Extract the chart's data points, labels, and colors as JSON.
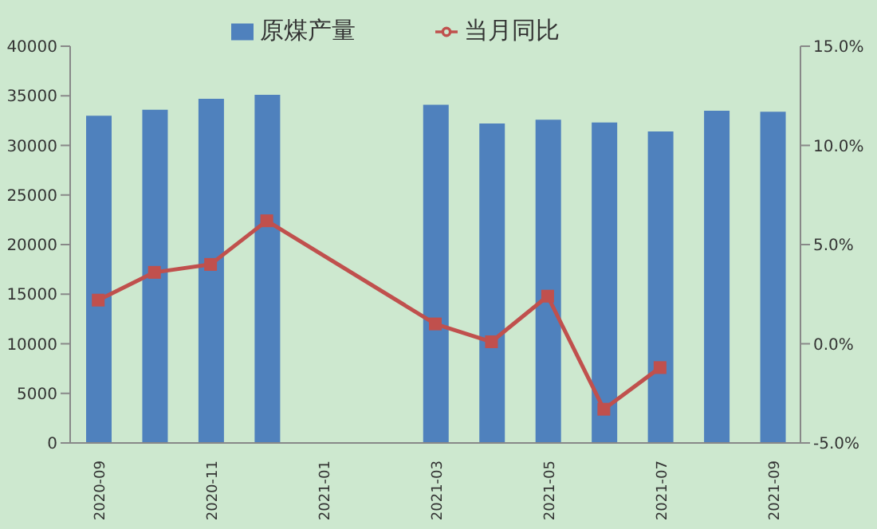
{
  "chart_data": {
    "type": "bar",
    "categories": [
      "2020-09",
      null,
      "2020-11",
      null,
      "2021-01",
      null,
      "2021-03",
      null,
      "2021-05",
      null,
      "2021-07",
      null,
      "2021-09"
    ],
    "series": [
      {
        "name": "原煤产量",
        "color": "#4f81bd",
        "values": [
          33000,
          33600,
          34700,
          35100,
          null,
          null,
          34100,
          32200,
          32600,
          32300,
          31400,
          33500,
          33400
        ]
      },
      {
        "name": "当月同比",
        "type": "line",
        "axis": "y2",
        "color": "#c0504d",
        "marker": "square",
        "values": [
          2.2,
          3.6,
          4.0,
          6.2,
          null,
          null,
          1.0,
          0.1,
          2.4,
          -3.3,
          -1.2,
          null,
          null
        ]
      }
    ],
    "ylim": [
      0,
      40000
    ],
    "yticks": [
      0,
      5000,
      10000,
      15000,
      20000,
      25000,
      30000,
      35000,
      40000
    ],
    "y2lim": [
      -5,
      15
    ],
    "y2ticks": [
      {
        "value": -5,
        "label": "-5.0%"
      },
      {
        "value": 0,
        "label": "0.0%"
      },
      {
        "value": 5,
        "label": "5.0%"
      },
      {
        "value": 10,
        "label": "10.0%"
      },
      {
        "value": 15,
        "label": "15.0%"
      }
    ],
    "grid": false,
    "legend": "top"
  }
}
